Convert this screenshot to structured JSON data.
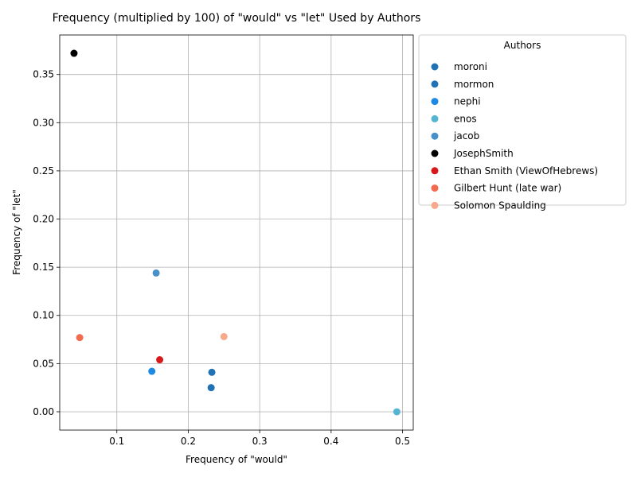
{
  "chart_data": {
    "type": "scatter",
    "title": "Frequency (multiplied by 100) of \"would\" vs \"let\" Used by Authors",
    "xlabel": "Frequency of \"would\"",
    "ylabel": "Frequency of \"let\"",
    "xlim": [
      0.02,
      0.515
    ],
    "ylim": [
      -0.019,
      0.391
    ],
    "xticks": [
      0.1,
      0.2,
      0.3,
      0.4,
      0.5
    ],
    "yticks": [
      0.0,
      0.05,
      0.1,
      0.15,
      0.2,
      0.25,
      0.3,
      0.35
    ],
    "grid": true,
    "legend_title": "Authors",
    "legend_position": "outside-right-top",
    "series": [
      {
        "name": "moroni",
        "color": "#2171b5",
        "x": 0.233,
        "y": 0.041
      },
      {
        "name": "mormon",
        "color": "#2171b5",
        "x": 0.232,
        "y": 0.025
      },
      {
        "name": "nephi",
        "color": "#1e88e5",
        "x": 0.149,
        "y": 0.042
      },
      {
        "name": "enos",
        "color": "#56b4d3",
        "x": 0.492,
        "y": 0.0
      },
      {
        "name": "jacob",
        "color": "#4a90c8",
        "x": 0.155,
        "y": 0.144
      },
      {
        "name": "JosephSmith",
        "color": "#000000",
        "x": 0.04,
        "y": 0.372
      },
      {
        "name": "Ethan Smith (ViewOfHebrews)",
        "color": "#d7191c",
        "x": 0.16,
        "y": 0.054
      },
      {
        "name": "Gilbert Hunt (late war)",
        "color": "#f26b4f",
        "x": 0.048,
        "y": 0.077
      },
      {
        "name": "Solomon Spaulding",
        "color": "#f9a98b",
        "x": 0.25,
        "y": 0.078
      }
    ]
  }
}
